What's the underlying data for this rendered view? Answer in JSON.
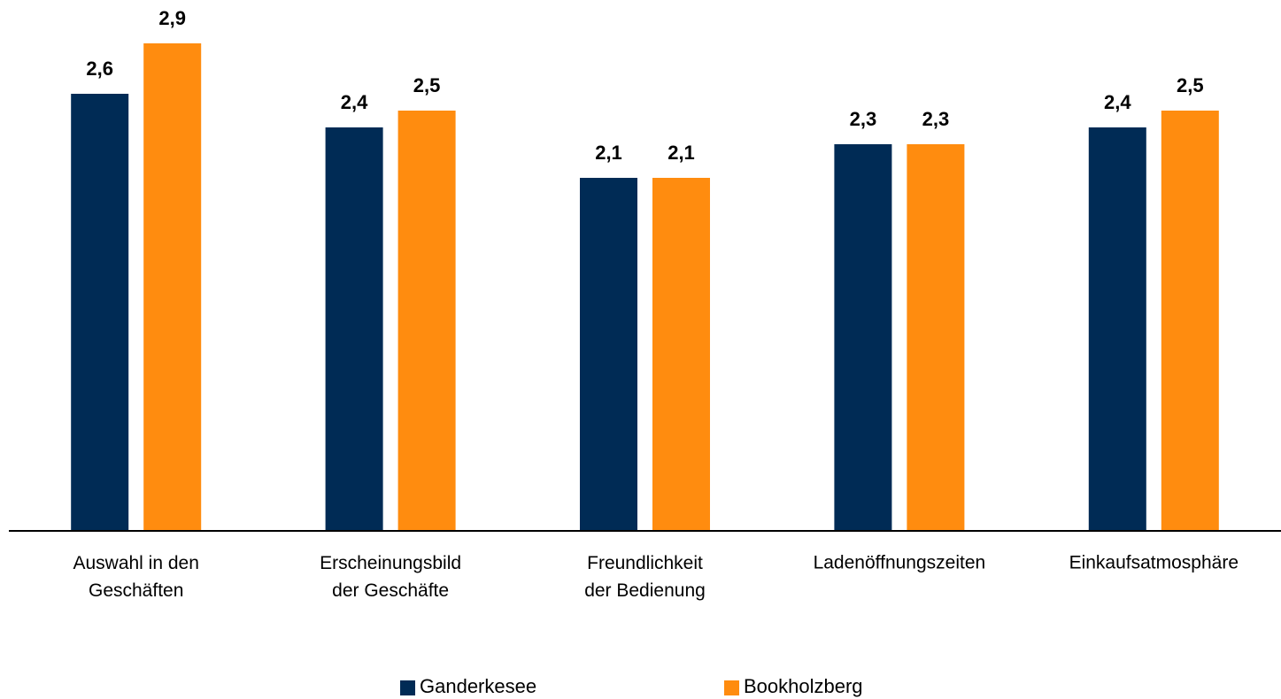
{
  "chart_data": {
    "type": "bar",
    "categories": [
      "Auswahl in den\nGeschäften",
      "Erscheinungsbild\nder Geschäfte",
      "Freundlichkeit\nder Bedienung",
      "Ladenöffnungszeiten",
      "Einkaufsatmosphäre"
    ],
    "series": [
      {
        "name": "Ganderkesee",
        "color": "#002b55",
        "values": [
          2.6,
          2.4,
          2.1,
          2.3,
          2.4
        ],
        "value_labels": [
          "2,6",
          "2,4",
          "2,1",
          "2,3",
          "2,4"
        ]
      },
      {
        "name": "Bookholzberg",
        "color": "#ff8c0f",
        "values": [
          2.9,
          2.5,
          2.1,
          2.3,
          2.5
        ],
        "value_labels": [
          "2,9",
          "2,5",
          "2,1",
          "2,3",
          "2,5"
        ]
      }
    ],
    "ylim": [
      0,
      3
    ],
    "legend": "bottom"
  }
}
